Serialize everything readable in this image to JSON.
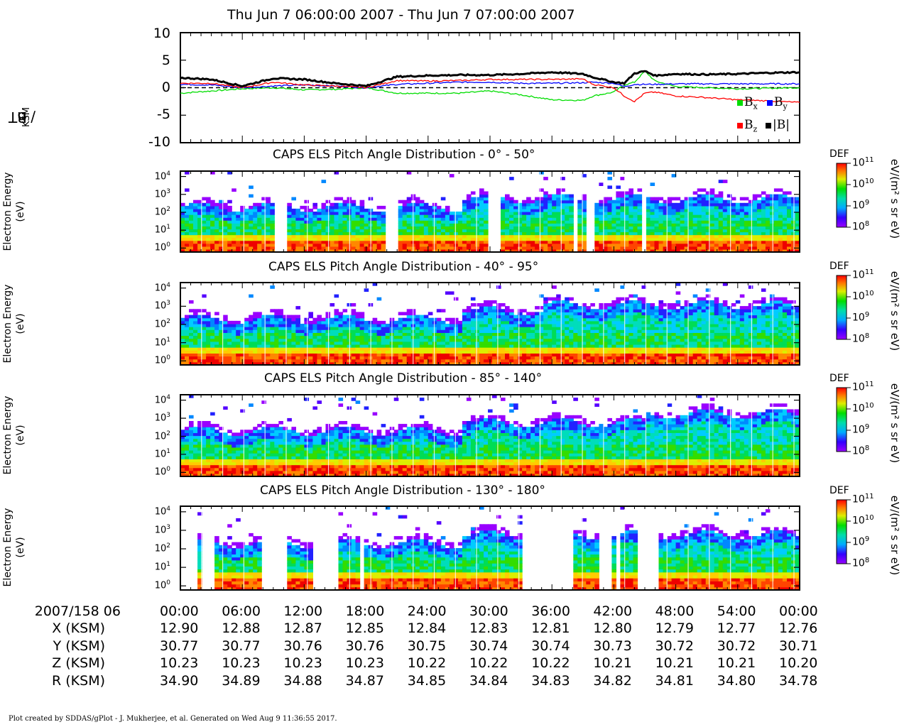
{
  "title": "Thu Jun 7 06:00:00 2007 - Thu Jun 7 07:00:00 2007",
  "mag_panel": {
    "ylabel_main": "B",
    "ylabel_sub": "KSM",
    "ylabel_unit": " / nT",
    "yticks": [
      "10",
      "5",
      "0",
      "-5",
      "-10"
    ]
  },
  "spectrogram": {
    "ylabel_line1": "Electron Energy",
    "ylabel_line2": "(eV)",
    "ytick_labels": [
      "10",
      "10",
      "10",
      "10",
      "10"
    ],
    "ytick_exps": [
      "4",
      "3",
      "2",
      "1",
      "0"
    ],
    "colorbar_title": "DEF",
    "colorbar_unit": "eV/(m² s sr eV)",
    "colorbar_labels": [
      "10",
      "10",
      "10",
      "10"
    ],
    "colorbar_exps": [
      "11",
      "10",
      "9",
      "8"
    ],
    "panel_titles": [
      "CAPS ELS Pitch Angle Distribution - 0° - 50°",
      "CAPS ELS Pitch Angle Distribution - 40° - 95°",
      "CAPS ELS Pitch Angle Distribution - 85° - 140°",
      "CAPS ELS Pitch Angle Distribution - 130° - 180°"
    ]
  },
  "legend": {
    "bx": "B",
    "bx_sub": "x",
    "by": "B",
    "by_sub": "y",
    "bz": "B",
    "bz_sub": "z",
    "bmag": "|B|",
    "colors": {
      "bx": "#00dd00",
      "by": "#0000ff",
      "bz": "#ff0000",
      "bmag": "#000000"
    }
  },
  "ephemeris": {
    "date_label": "2007/158 06",
    "times": [
      "00:00",
      "06:00",
      "12:00",
      "18:00",
      "24:00",
      "30:00",
      "36:00",
      "42:00",
      "48:00",
      "54:00",
      "00:00"
    ],
    "rows": [
      {
        "label": "X (KSM)",
        "values": [
          "12.90",
          "12.88",
          "12.87",
          "12.85",
          "12.84",
          "12.83",
          "12.81",
          "12.80",
          "12.79",
          "12.77",
          "12.76"
        ]
      },
      {
        "label": "Y (KSM)",
        "values": [
          "30.77",
          "30.77",
          "30.76",
          "30.76",
          "30.75",
          "30.74",
          "30.74",
          "30.73",
          "30.72",
          "30.72",
          "30.71"
        ]
      },
      {
        "label": "Z (KSM)",
        "values": [
          "10.23",
          "10.23",
          "10.23",
          "10.23",
          "10.22",
          "10.22",
          "10.22",
          "10.21",
          "10.21",
          "10.21",
          "10.20"
        ]
      },
      {
        "label": "R (KSM)",
        "values": [
          "34.90",
          "34.89",
          "34.88",
          "34.87",
          "34.85",
          "34.84",
          "34.83",
          "34.82",
          "34.81",
          "34.80",
          "34.78"
        ]
      }
    ]
  },
  "footer": "Plot created by SDDAS/gPlot - J. Mukherjee, et al.  Generated on Wed Aug 9 11:36:55 2017.",
  "chart_data": [
    {
      "type": "line",
      "xlabel": "",
      "ylabel": "B_KSM / nT",
      "xlim": [
        0,
        60
      ],
      "ylim": [
        -10,
        10
      ],
      "x": [
        0,
        3,
        6,
        9,
        12,
        15,
        18,
        21,
        24,
        27,
        30,
        33,
        36,
        39,
        40,
        42,
        43,
        44,
        45,
        46,
        48,
        51,
        54,
        57,
        60
      ],
      "series": [
        {
          "name": "Bx",
          "values": [
            -1.0,
            -0.6,
            -0.2,
            0.0,
            -0.4,
            -0.3,
            0.0,
            -1.0,
            -1.0,
            -1.0,
            -0.6,
            -1.3,
            -2.2,
            -2.3,
            -1.5,
            -0.8,
            0.5,
            1.0,
            3.0,
            1.2,
            0.2,
            0.0,
            -0.2,
            -0.1,
            0.0
          ]
        },
        {
          "name": "By",
          "values": [
            0.6,
            0.5,
            0.0,
            0.3,
            0.5,
            0.3,
            0.0,
            0.6,
            0.8,
            1.0,
            1.0,
            0.8,
            0.8,
            0.9,
            1.0,
            0.8,
            0.2,
            0.6,
            0.6,
            0.6,
            0.7,
            0.7,
            0.7,
            0.7,
            0.7
          ]
        },
        {
          "name": "Bz",
          "values": [
            0.8,
            0.8,
            0.0,
            1.0,
            0.5,
            0.3,
            0.0,
            1.3,
            1.2,
            1.3,
            1.5,
            1.5,
            1.5,
            1.6,
            0.6,
            0.0,
            -1.5,
            -2.5,
            -1.0,
            -0.8,
            -1.5,
            -1.8,
            -2.2,
            -2.4,
            -2.7
          ]
        },
        {
          "name": "|B|",
          "values": [
            1.8,
            1.5,
            0.3,
            1.7,
            1.5,
            0.8,
            0.3,
            2.0,
            2.2,
            2.3,
            2.3,
            2.5,
            2.8,
            2.5,
            1.9,
            1.0,
            0.8,
            2.6,
            3.0,
            2.2,
            2.5,
            2.4,
            2.5,
            2.7,
            2.8
          ]
        }
      ]
    },
    {
      "type": "heatmap",
      "title": "CAPS ELS Pitch Angle Distribution - 0° - 50°",
      "ylabel": "Electron Energy (eV)",
      "ylim": [
        0.6,
        20000
      ],
      "yscale": "log",
      "color_range": [
        100000000.0,
        100000000000.0
      ],
      "data_gaps_min": [
        [
          9,
          10
        ],
        [
          19.5,
          21
        ],
        [
          29.5,
          31
        ],
        [
          37.7,
          38.3
        ],
        [
          39.3,
          39.8
        ],
        [
          44.5,
          45
        ]
      ]
    },
    {
      "type": "heatmap",
      "title": "CAPS ELS Pitch Angle Distribution - 40° - 95°",
      "ylabel": "Electron Energy (eV)",
      "ylim": [
        0.6,
        20000
      ],
      "yscale": "log",
      "color_range": [
        100000000.0,
        100000000000.0
      ]
    },
    {
      "type": "heatmap",
      "title": "CAPS ELS Pitch Angle Distribution - 85° - 140°",
      "ylabel": "Electron Energy (eV)",
      "ylim": [
        0.6,
        20000
      ],
      "yscale": "log",
      "color_range": [
        100000000.0,
        100000000000.0
      ]
    },
    {
      "type": "heatmap",
      "title": "CAPS ELS Pitch Angle Distribution - 130° - 180°",
      "ylabel": "Electron Energy (eV)",
      "ylim": [
        0.6,
        20000
      ],
      "yscale": "log",
      "color_range": [
        100000000.0,
        100000000000.0
      ]
    }
  ]
}
